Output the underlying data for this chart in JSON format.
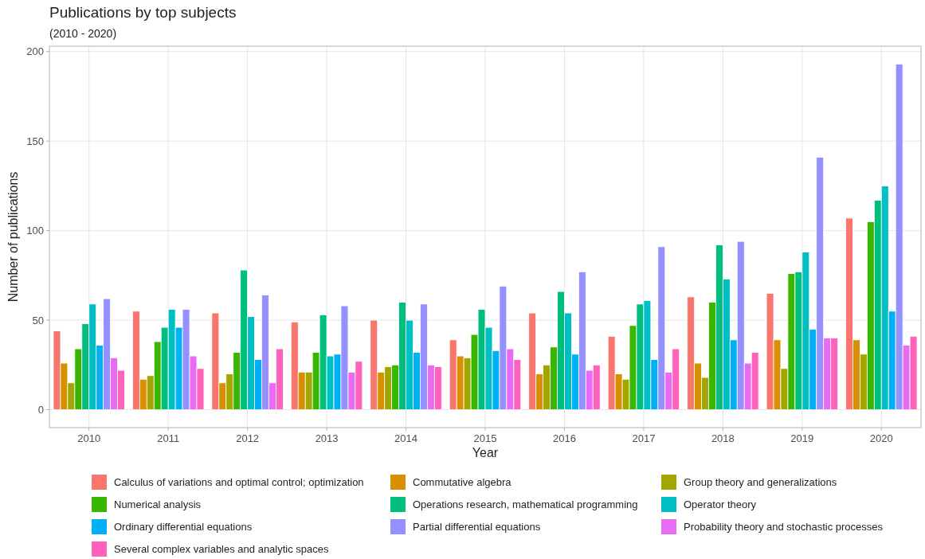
{
  "chart_data": {
    "type": "bar",
    "title": "Publications by top subjects",
    "subtitle": "(2010 - 2020)",
    "xlabel": "Year",
    "ylabel": "Number of publications",
    "categories": [
      "2010",
      "2011",
      "2012",
      "2013",
      "2014",
      "2015",
      "2016",
      "2017",
      "2018",
      "2019",
      "2020"
    ],
    "series": [
      {
        "name": "Calculus of variations and optimal control; optimization",
        "color": "#f8766d",
        "values": [
          44,
          55,
          54,
          49,
          50,
          39,
          54,
          41,
          63,
          65,
          107
        ]
      },
      {
        "name": "Commutative algebra",
        "color": "#d89000",
        "values": [
          26,
          17,
          15,
          21,
          21,
          30,
          20,
          20,
          26,
          39,
          39
        ]
      },
      {
        "name": "Group theory and generalizations",
        "color": "#a3a500",
        "values": [
          15,
          19,
          20,
          21,
          24,
          29,
          25,
          17,
          18,
          23,
          31
        ]
      },
      {
        "name": "Numerical analysis",
        "color": "#39b600",
        "values": [
          34,
          38,
          32,
          32,
          25,
          42,
          35,
          47,
          60,
          76,
          105
        ]
      },
      {
        "name": "Operations research, mathematical programming",
        "color": "#00bf7d",
        "values": [
          48,
          46,
          78,
          53,
          60,
          56,
          66,
          59,
          92,
          77,
          117
        ]
      },
      {
        "name": "Operator theory",
        "color": "#00bfc4",
        "values": [
          59,
          56,
          52,
          30,
          50,
          46,
          54,
          61,
          73,
          88,
          125
        ]
      },
      {
        "name": "Ordinary differential equations",
        "color": "#00b0f6",
        "values": [
          36,
          46,
          28,
          31,
          32,
          33,
          31,
          28,
          39,
          45,
          55
        ]
      },
      {
        "name": "Partial differential equations",
        "color": "#9590ff",
        "values": [
          62,
          56,
          64,
          58,
          59,
          69,
          77,
          91,
          94,
          141,
          193
        ]
      },
      {
        "name": "Probability theory and stochastic processes",
        "color": "#e76bf3",
        "values": [
          29,
          30,
          15,
          21,
          25,
          34,
          22,
          21,
          26,
          40,
          36
        ]
      },
      {
        "name": "Several complex variables and analytic spaces",
        "color": "#ff62bc",
        "values": [
          22,
          23,
          34,
          27,
          24,
          28,
          25,
          34,
          32,
          40,
          41
        ]
      }
    ],
    "ylim": [
      -10,
      203
    ],
    "yticks": [
      0,
      50,
      100,
      150,
      200
    ],
    "grid": true,
    "legend": "bottom"
  }
}
